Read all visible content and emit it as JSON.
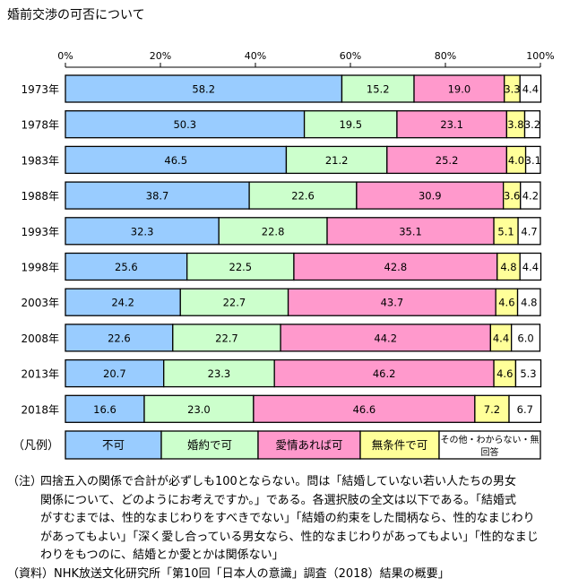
{
  "chart_data": {
    "type": "bar",
    "orientation": "horizontal",
    "stacked": true,
    "title": "婚前交渉の可否について",
    "xlim": [
      0,
      100
    ],
    "xticks": [
      "0%",
      "20%",
      "40%",
      "60%",
      "80%",
      "100%"
    ],
    "categories": [
      "1973年",
      "1978年",
      "1983年",
      "1988年",
      "1993年",
      "1998年",
      "2003年",
      "2008年",
      "2013年",
      "2018年"
    ],
    "series": [
      {
        "name": "不可",
        "color": "#99ccff",
        "values": [
          58.2,
          50.3,
          46.5,
          38.7,
          32.3,
          25.6,
          24.2,
          22.6,
          20.7,
          16.6
        ]
      },
      {
        "name": "婚約で可",
        "color": "#ccffcc",
        "values": [
          15.2,
          19.5,
          21.2,
          22.6,
          22.8,
          22.5,
          22.7,
          22.7,
          23.3,
          23.0
        ]
      },
      {
        "name": "愛情あれば可",
        "color": "#ff99cc",
        "values": [
          19.0,
          23.1,
          25.2,
          30.9,
          35.1,
          42.8,
          43.7,
          44.2,
          46.2,
          46.6
        ]
      },
      {
        "name": "無条件で可",
        "color": "#ffff99",
        "values": [
          3.3,
          3.8,
          4.0,
          3.6,
          5.1,
          4.8,
          4.6,
          4.4,
          4.6,
          7.2
        ]
      },
      {
        "name": "その他・わからない・無回答",
        "legend_lines": [
          "その他・わからない・無",
          "回答"
        ],
        "color": "#ffffff",
        "values": [
          4.4,
          3.2,
          3.1,
          4.2,
          4.7,
          4.4,
          4.8,
          6.0,
          5.3,
          6.7
        ]
      }
    ],
    "legend_label": "（凡例）",
    "legend_placement": "bottom"
  },
  "notes": {
    "label": "（注）",
    "lines": [
      "四捨五入の関係で合計が必ずしも100とならない。問は「結婚していない若い人たちの男女",
      "関係について、どのようにお考えですか。」である。各選択肢の全文は以下である。「結婚式",
      "がすむまでは、性的なまじわりをすべきでない」「結婚の約束をした間柄なら、性的なまじわり",
      "があってもよい」「深く愛し合っている男女なら、性的なまじわりがあってもよい」「性的なまじ",
      "わりをもつのに、結婚とか愛とかは関係ない」"
    ]
  },
  "source": "（資料）NHK放送文化研究所「第10回「日本人の意識」調査（2018）結果の概要」"
}
